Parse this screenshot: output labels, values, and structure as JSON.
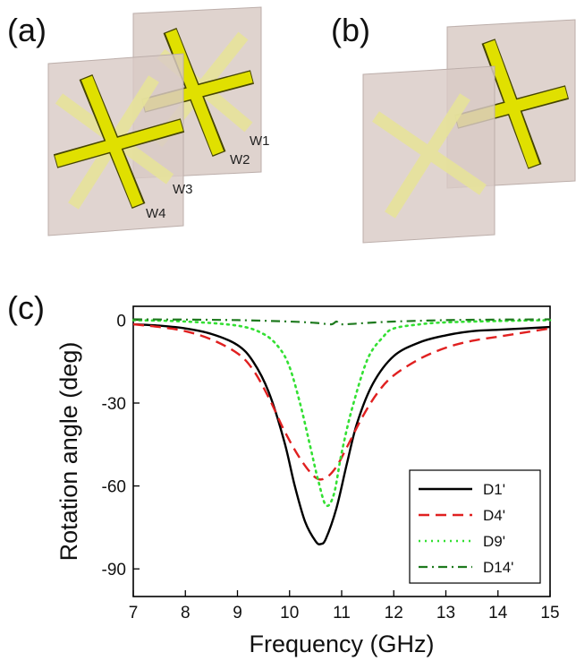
{
  "panels": {
    "a": {
      "label": "(a)",
      "wire_labels": [
        "W1",
        "W2",
        "W3",
        "W4"
      ]
    },
    "b": {
      "label": "(b)"
    },
    "c": {
      "label": "(c)"
    }
  },
  "colors": {
    "plate": "#d9cbc6",
    "plate_edge": "#bcaeaa",
    "wire": "#e0e000",
    "wire_edge": "#454500",
    "wire_ghost": "#e7e39a"
  },
  "chart_data": {
    "type": "line",
    "xlabel": "Frequency (GHz)",
    "ylabel": "Rotation angle (deg)",
    "xlim": [
      7,
      15
    ],
    "ylim": [
      -100,
      5
    ],
    "xticks": [
      7,
      8,
      9,
      10,
      11,
      12,
      13,
      14,
      15
    ],
    "yticks": [
      0,
      -30,
      -60,
      -90
    ],
    "legend_position": "bottom-right",
    "grid": false,
    "series": [
      {
        "name": "D1'",
        "color": "#000000",
        "style": "solid",
        "x": [
          7,
          7.5,
          8,
          8.5,
          9,
          9.3,
          9.6,
          9.9,
          10.1,
          10.3,
          10.5,
          10.6,
          10.7,
          10.9,
          11.1,
          11.3,
          11.6,
          12,
          12.5,
          13,
          13.5,
          14,
          14.5,
          15
        ],
        "y": [
          -1.5,
          -2,
          -3,
          -5,
          -9,
          -15,
          -26,
          -44,
          -60,
          -73,
          -80,
          -81,
          -79,
          -68,
          -52,
          -37,
          -23,
          -13,
          -8,
          -5.5,
          -4,
          -3.5,
          -3,
          -2.5
        ]
      },
      {
        "name": "D4'",
        "color": "#e02020",
        "style": "dashed",
        "x": [
          7,
          7.5,
          8,
          8.5,
          9,
          9.3,
          9.6,
          9.9,
          10.2,
          10.5,
          10.7,
          10.9,
          11.1,
          11.4,
          11.7,
          12,
          12.5,
          13,
          13.5,
          14,
          14.5,
          15
        ],
        "y": [
          -1.5,
          -2.5,
          -4,
          -7,
          -12,
          -18,
          -28,
          -40,
          -50,
          -57,
          -57,
          -53,
          -46,
          -35,
          -26,
          -20,
          -14,
          -10,
          -7.5,
          -6,
          -4.5,
          -3
        ]
      },
      {
        "name": "D9'",
        "color": "#33e033",
        "style": "dotted",
        "x": [
          7,
          8,
          9,
          9.5,
          9.8,
          10,
          10.2,
          10.4,
          10.55,
          10.7,
          10.85,
          11,
          11.2,
          11.5,
          11.8,
          12,
          12.5,
          13,
          14,
          15
        ],
        "y": [
          0,
          -0.5,
          -2,
          -5,
          -10,
          -17,
          -30,
          -46,
          -58,
          -67,
          -63,
          -48,
          -32,
          -14,
          -6,
          -3,
          -1.5,
          -0.8,
          -0.3,
          0
        ]
      },
      {
        "name": "D14'",
        "color": "#1e7a1e",
        "style": "dashdot",
        "x": [
          7,
          8,
          9,
          10,
          10.5,
          10.8,
          10.9,
          11,
          11.5,
          12,
          13,
          14,
          15
        ],
        "y": [
          0.3,
          0.2,
          0,
          -0.5,
          -1,
          -1.5,
          -0.5,
          -1.5,
          -1,
          -0.5,
          0,
          0.2,
          0.3
        ]
      }
    ]
  }
}
